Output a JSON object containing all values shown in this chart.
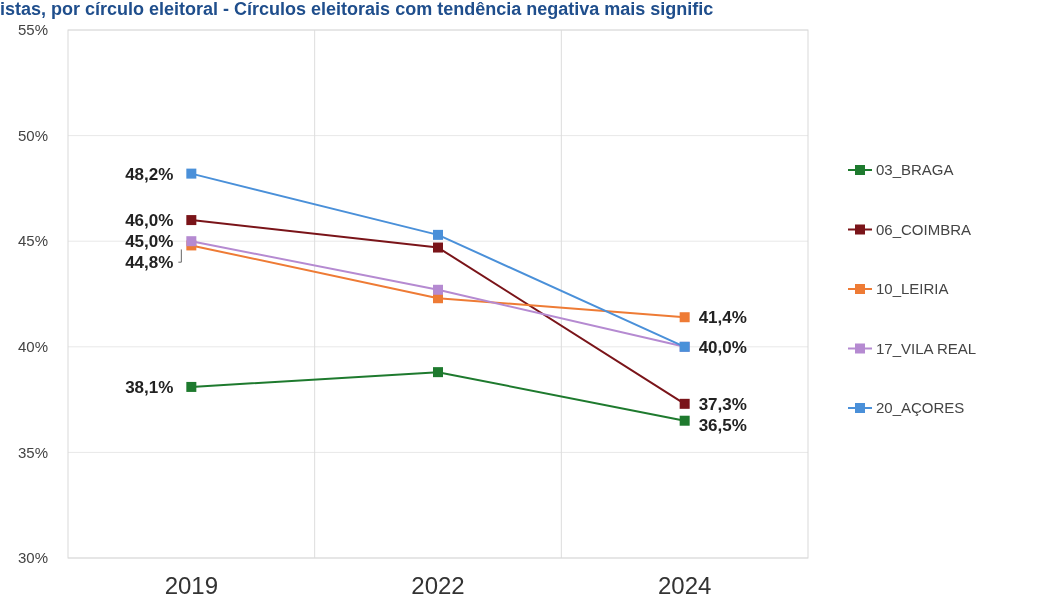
{
  "chart_data": {
    "type": "line",
    "title": "istas, por círculo eleitoral - Círculos eleitorais com tendência negativa mais signific",
    "categories": [
      "2019",
      "2022",
      "2024"
    ],
    "series": [
      {
        "name": "03_BRAGA",
        "color": "#1e7a2e",
        "values": [
          38.1,
          38.8,
          36.5
        ],
        "value_labels": [
          "38,1%",
          null,
          "36,5%"
        ]
      },
      {
        "name": "06_COIMBRA",
        "color": "#7a1419",
        "values": [
          46.0,
          44.7,
          37.3
        ],
        "value_labels": [
          "46,0%",
          null,
          "37,3%"
        ]
      },
      {
        "name": "10_LEIRIA",
        "color": "#ee7b35",
        "values": [
          44.8,
          42.3,
          41.4
        ],
        "value_labels": [
          "44,8%",
          null,
          "41,4%"
        ]
      },
      {
        "name": "17_VILA REAL",
        "color": "#b58ad1",
        "values": [
          45.0,
          42.7,
          40.0
        ],
        "value_labels": [
          "45,0%",
          null,
          null
        ]
      },
      {
        "name": "20_AÇORES",
        "color": "#4a90d9",
        "values": [
          48.2,
          45.3,
          40.0
        ],
        "value_labels": [
          "48,2%",
          null,
          "40,0%"
        ]
      }
    ],
    "ylim": [
      30,
      55
    ],
    "yticks": [
      {
        "value": 30,
        "label": "30%"
      },
      {
        "value": 35,
        "label": "35%"
      },
      {
        "value": 40,
        "label": "40%"
      },
      {
        "value": 45,
        "label": "45%"
      },
      {
        "value": 50,
        "label": "50%"
      },
      {
        "value": 55,
        "label": "55%"
      }
    ],
    "grid": true,
    "legend": "right",
    "marker": "square",
    "line_style": "solid"
  }
}
